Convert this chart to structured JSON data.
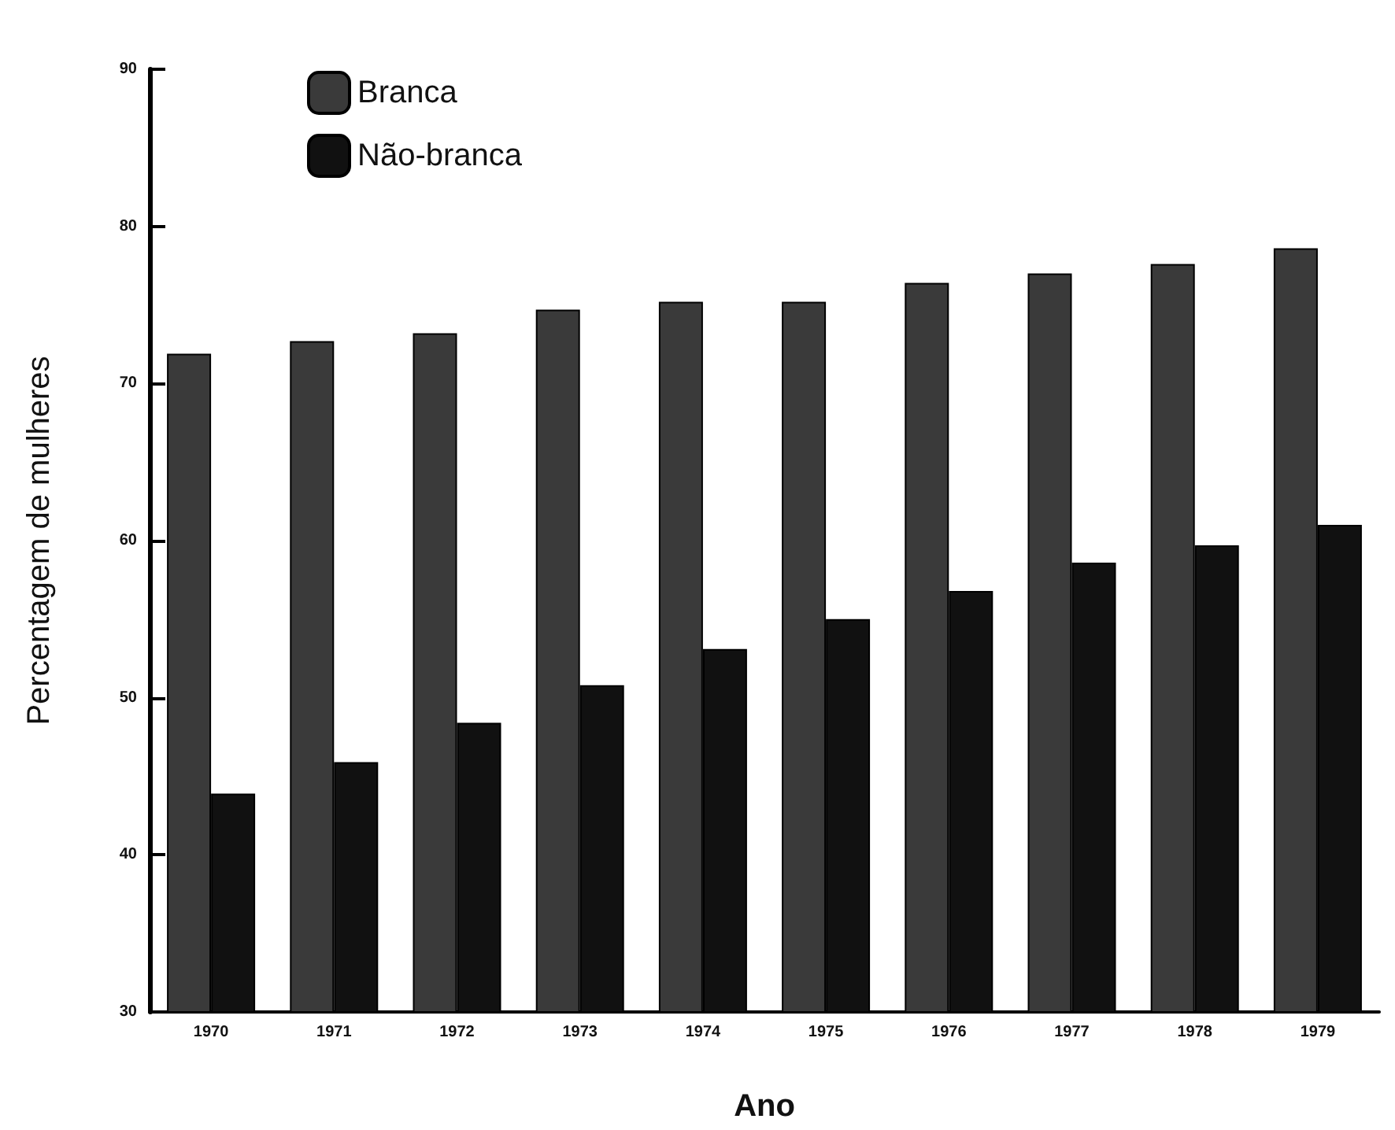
{
  "chart_data": {
    "type": "bar",
    "xlabel": "Ano",
    "ylabel": "Percentagem de mulheres",
    "categories": [
      "1970",
      "1971",
      "1972",
      "1973",
      "1974",
      "1975",
      "1976",
      "1977",
      "1978",
      "1979"
    ],
    "series": [
      {
        "name": "Branca",
        "color": "#3a3a3a",
        "values": [
          71.9,
          72.7,
          73.2,
          74.7,
          75.2,
          75.2,
          76.4,
          77.0,
          77.6,
          78.6
        ]
      },
      {
        "name": "Não-branca",
        "color": "#111111",
        "values": [
          43.9,
          45.9,
          48.4,
          50.8,
          53.1,
          55.0,
          56.8,
          58.6,
          59.7,
          61.0
        ]
      }
    ],
    "ylim": [
      30,
      90
    ],
    "yticks": [
      30,
      40,
      50,
      60,
      70,
      80,
      90
    ],
    "grid": false,
    "legend": "top left"
  }
}
